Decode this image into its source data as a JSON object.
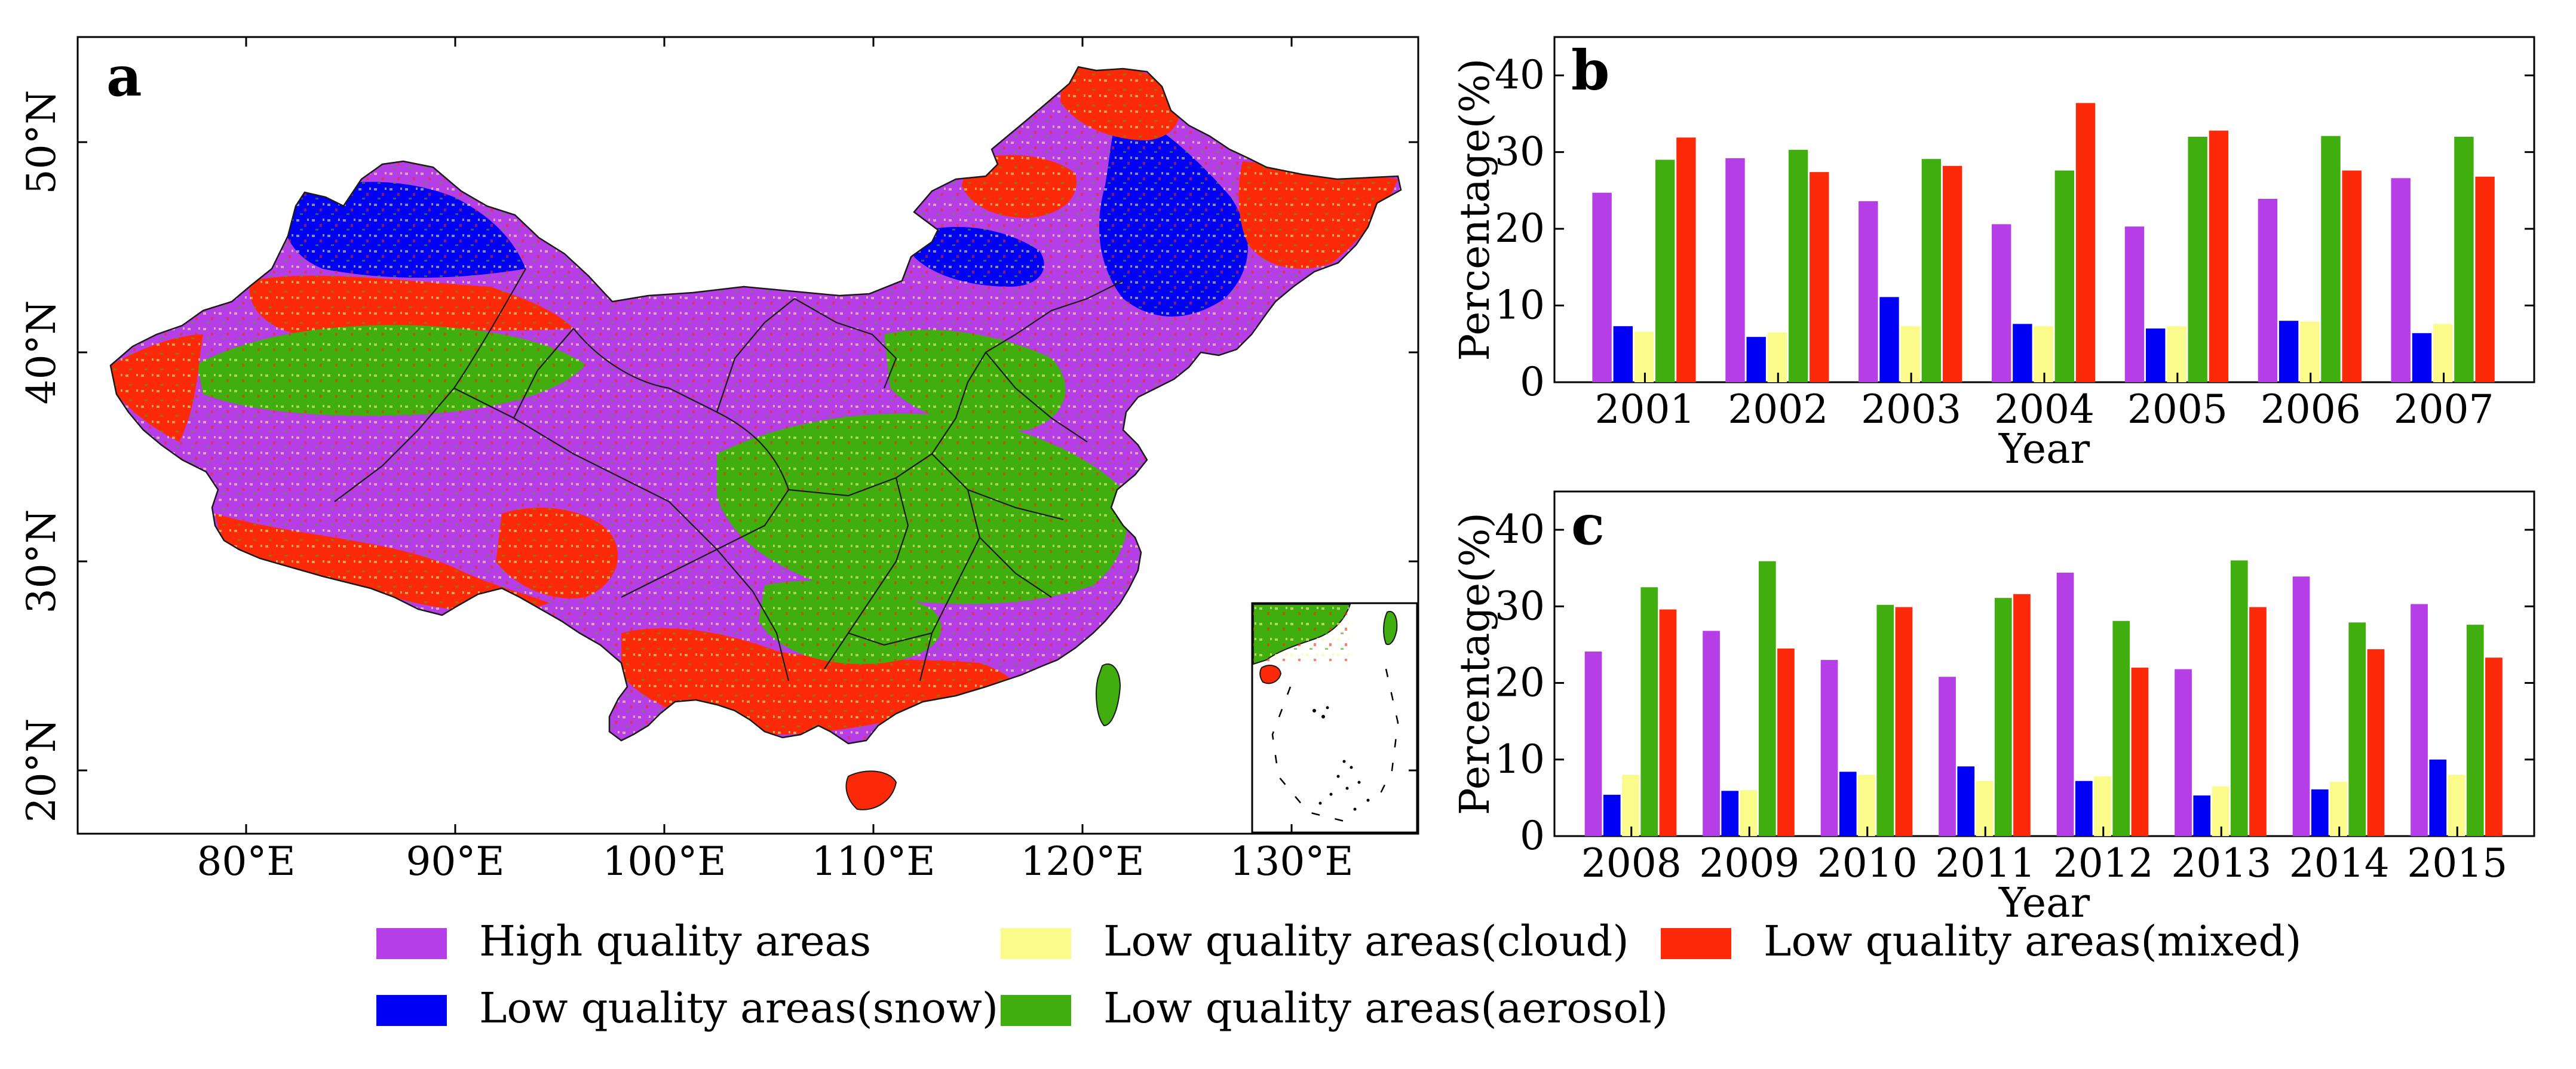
{
  "colors": {
    "high": "#b63ee6",
    "snow": "#0000f4",
    "cloud": "#fbfb8c",
    "aerosol": "#3fae0e",
    "mixed": "#fd2a0a"
  },
  "map": {
    "panel_label": "a",
    "lat_labels": [
      "50°N",
      "40°N",
      "30°N",
      "20°N"
    ],
    "lon_labels": [
      "80°E",
      "90°E",
      "100°E",
      "110°E",
      "120°E",
      "130°E"
    ]
  },
  "legend": {
    "items": [
      {
        "key": "high",
        "label": "High quality areas"
      },
      {
        "key": "cloud",
        "label": "Low quality areas(cloud)"
      },
      {
        "key": "mixed",
        "label": "Low quality areas(mixed)"
      },
      {
        "key": "snow",
        "label": "Low quality areas(snow)"
      },
      {
        "key": "aerosol",
        "label": "Low quality areas(aerosol)"
      }
    ]
  },
  "chart_data": [
    {
      "type": "bar",
      "panel_label": "b",
      "title": "",
      "xlabel": "Year",
      "ylabel": "Percentage(%)",
      "ylim": [
        0,
        45
      ],
      "yticks": [
        0,
        10,
        20,
        30,
        40
      ],
      "categories": [
        "2001",
        "2002",
        "2003",
        "2004",
        "2005",
        "2006",
        "2007"
      ],
      "series": [
        {
          "name": "High quality areas",
          "key": "high",
          "values": [
            24.7,
            29.2,
            23.6,
            20.6,
            20.3,
            23.9,
            26.6
          ]
        },
        {
          "name": "Low quality areas(snow)",
          "key": "snow",
          "values": [
            7.3,
            5.9,
            11.1,
            7.6,
            7.0,
            8.0,
            6.4
          ]
        },
        {
          "name": "Low quality areas(cloud)",
          "key": "cloud",
          "values": [
            6.6,
            6.5,
            7.3,
            7.3,
            7.3,
            7.9,
            7.6
          ]
        },
        {
          "name": "Low quality areas(aerosol)",
          "key": "aerosol",
          "values": [
            29.0,
            30.3,
            29.1,
            27.6,
            32.0,
            32.1,
            32.0
          ]
        },
        {
          "name": "Low quality areas(mixed)",
          "key": "mixed",
          "values": [
            31.9,
            27.4,
            28.2,
            36.4,
            32.8,
            27.6,
            26.8
          ]
        }
      ]
    },
    {
      "type": "bar",
      "panel_label": "c",
      "title": "",
      "xlabel": "Year",
      "ylabel": "Percentage(%)",
      "ylim": [
        0,
        45
      ],
      "yticks": [
        0,
        10,
        20,
        30,
        40
      ],
      "categories": [
        "2008",
        "2009",
        "2010",
        "2011",
        "2012",
        "2013",
        "2014",
        "2015"
      ],
      "series": [
        {
          "name": "High quality areas",
          "key": "high",
          "values": [
            24.1,
            26.8,
            23.0,
            20.8,
            34.4,
            21.8,
            33.9,
            30.3
          ]
        },
        {
          "name": "Low quality areas(snow)",
          "key": "snow",
          "values": [
            5.4,
            5.9,
            8.4,
            9.1,
            7.2,
            5.3,
            6.1,
            10.0
          ]
        },
        {
          "name": "Low quality areas(cloud)",
          "key": "cloud",
          "values": [
            8.0,
            6.0,
            8.0,
            7.2,
            7.8,
            6.5,
            7.1,
            8.0
          ]
        },
        {
          "name": "Low quality areas(aerosol)",
          "key": "aerosol",
          "values": [
            32.5,
            35.9,
            30.2,
            31.1,
            28.1,
            36.0,
            27.9,
            27.6
          ]
        },
        {
          "name": "Low quality areas(mixed)",
          "key": "mixed",
          "values": [
            29.6,
            24.5,
            29.9,
            31.6,
            22.0,
            29.9,
            24.4,
            23.3
          ]
        }
      ]
    }
  ]
}
